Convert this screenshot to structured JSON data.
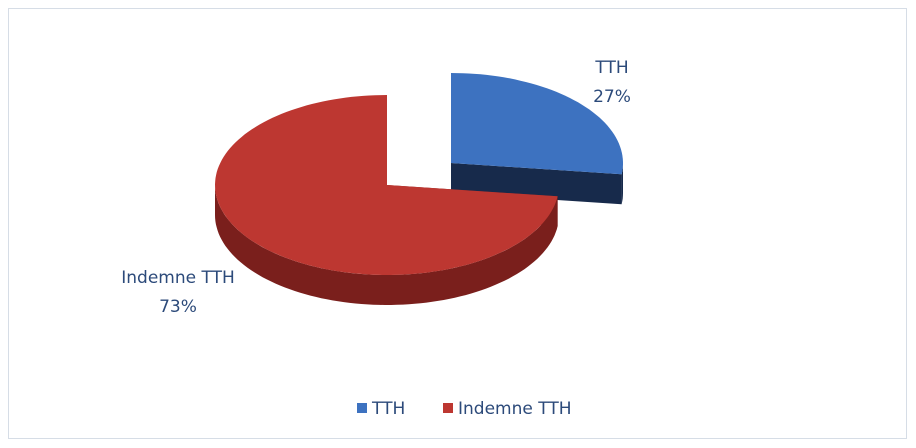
{
  "chart_data": {
    "type": "pie",
    "categories": [
      "TTH",
      "Indemne TTH"
    ],
    "values": [
      27,
      73
    ],
    "value_labels": [
      "27%",
      "73%"
    ],
    "colors": [
      "#3d72c0",
      "#bd3731"
    ],
    "side_colors": [
      "#172a4b",
      "#7a1f1c"
    ],
    "legend": "bottom"
  }
}
